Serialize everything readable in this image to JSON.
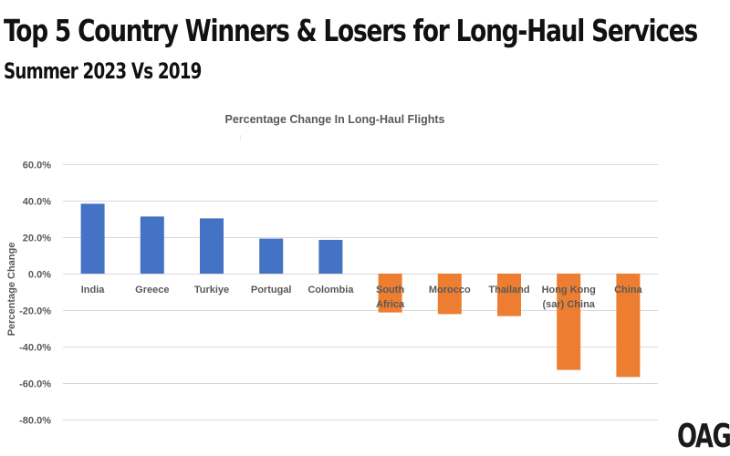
{
  "header": {
    "title": "Top 5 Country Winners & Losers for Long-Haul Services",
    "subtitle": "Summer 2023 Vs 2019"
  },
  "logo": {
    "text": "OAG",
    "mark": "®"
  },
  "chart_data": {
    "type": "bar",
    "title": "Percentage Change In Long-Haul Flights",
    "xlabel": "",
    "ylabel": "Percentage Change",
    "ylim": [
      -80,
      60
    ],
    "yticks": [
      60,
      40,
      20,
      0,
      -20,
      -40,
      -60,
      -80
    ],
    "ytick_labels": [
      "60.0%",
      "40.0%",
      "20.0%",
      "0.0%",
      "-20.0%",
      "-40.0%",
      "-60.0%",
      "-80.0%"
    ],
    "grid": true,
    "legend": "none",
    "categories": [
      "India",
      "Greece",
      "Turkiye",
      "Portugal",
      "Colombia",
      "South Africa",
      "Morocco",
      "Thailand",
      "Hong Kong (sar) China",
      "China"
    ],
    "category_label_lines": [
      [
        "India"
      ],
      [
        "Greece"
      ],
      [
        "Turkiye"
      ],
      [
        "Portugal"
      ],
      [
        "Colombia"
      ],
      [
        "South",
        "Africa"
      ],
      [
        "Morocco"
      ],
      [
        "Thailand"
      ],
      [
        "Hong Kong",
        "(sar) China"
      ],
      [
        "China"
      ]
    ],
    "values": [
      38.3,
      31.3,
      30.3,
      19.2,
      18.5,
      -21.3,
      -22.2,
      -23.3,
      -52.8,
      -56.7
    ],
    "colors": {
      "positive": "#4472C4",
      "negative": "#ED7D31"
    }
  }
}
